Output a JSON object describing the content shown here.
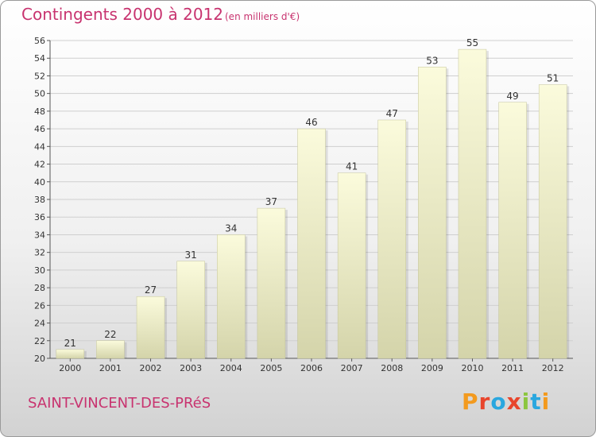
{
  "header": {
    "title": "Contingents 2000 à 2012",
    "unit": "(en milliers d'€)"
  },
  "footer": {
    "commune": "SAINT-VINCENT-DES-PRéS",
    "logo_text": "Proxiti"
  },
  "colors": {
    "title": "#c8336f",
    "bar_top": "#fbfbdc",
    "bar_bottom": "#d4d4aa",
    "grid": "#cfcfcf",
    "logo": [
      "#f39a1e",
      "#e8452c",
      "#2aa7df",
      "#e8452c",
      "#8cc63f",
      "#2aa7df",
      "#f39a1e"
    ]
  },
  "chart_data": {
    "type": "bar",
    "title": "Contingents 2000 à 2012",
    "categories": [
      "2000",
      "2001",
      "2002",
      "2003",
      "2004",
      "2005",
      "2006",
      "2007",
      "2008",
      "2009",
      "2010",
      "2011",
      "2012"
    ],
    "values": [
      21,
      22,
      27,
      31,
      34,
      37,
      46,
      41,
      47,
      53,
      55,
      49,
      51
    ],
    "ylim": [
      20,
      56
    ],
    "yticks": [
      20,
      22,
      24,
      26,
      28,
      30,
      32,
      34,
      36,
      38,
      40,
      42,
      44,
      46,
      48,
      50,
      52,
      54,
      56
    ],
    "grid": true,
    "xlabel": "",
    "ylabel": ""
  }
}
